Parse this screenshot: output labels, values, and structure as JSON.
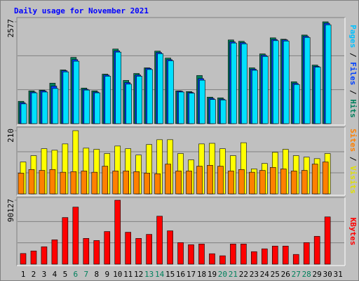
{
  "chart_data": {
    "type": "bar",
    "title": "Daily usage for November 2021",
    "categories": [
      "1",
      "2",
      "3",
      "4",
      "5",
      "6",
      "7",
      "8",
      "9",
      "10",
      "11",
      "12",
      "13",
      "14",
      "15",
      "16",
      "17",
      "18",
      "19",
      "20",
      "21",
      "22",
      "23",
      "24",
      "25",
      "26",
      "27",
      "28",
      "29",
      "30",
      "31"
    ],
    "category_colors": [
      "#000000",
      "#000000",
      "#000000",
      "#000000",
      "#000000",
      "#00805c",
      "#00805c",
      "#000000",
      "#000000",
      "#000000",
      "#000000",
      "#000000",
      "#00805c",
      "#00805c",
      "#000000",
      "#000000",
      "#000000",
      "#000000",
      "#000000",
      "#00805c",
      "#00805c",
      "#000000",
      "#000000",
      "#000000",
      "#000000",
      "#000000",
      "#00805c",
      "#00805c",
      "#000000",
      "#000000",
      "#000000"
    ],
    "panels": [
      {
        "ylim": [
          0,
          2577
        ],
        "yticks": [
          2577
        ],
        "series": [
          {
            "name": "Hits",
            "color": "#00805c",
            "values": [
              565,
              830,
              847,
              1024,
              1359,
              1677,
              900,
              830,
              1253,
              1888,
              1094,
              1270,
              1412,
              1835,
              1659,
              830,
              812,
              1218,
              671,
              653,
              2118,
              2083,
              1412,
              1765,
              2171,
              2136,
              1059,
              2242,
              1482,
              2577,
              0
            ]
          },
          {
            "name": "Files",
            "color": "#0040ff",
            "values": [
              530,
              800,
              830,
              950,
              1340,
              1620,
              870,
              800,
              1230,
              1840,
              1040,
              1230,
              1400,
              1800,
              1620,
              820,
              790,
              1140,
              640,
              620,
              2070,
              2050,
              1380,
              1730,
              2130,
              2120,
              1020,
              2210,
              1450,
              2540,
              0
            ]
          },
          {
            "name": "Pages",
            "color": "#00e0ff",
            "values": [
              500,
              780,
              800,
              890,
              1310,
              1580,
              850,
              780,
              1200,
              1810,
              1000,
              1200,
              1370,
              1770,
              1590,
              800,
              770,
              1100,
              610,
              600,
              2040,
              2020,
              1350,
              1700,
              2100,
              2090,
              990,
              2180,
              1430,
              2500,
              0
            ]
          }
        ]
      },
      {
        "ylim": [
          0,
          210
        ],
        "yticks": [
          210
        ],
        "series": [
          {
            "name": "Visits",
            "color": "#ffff00",
            "values": [
              106,
              127,
              150,
              145,
              166,
              210,
              152,
              148,
              134,
              159,
              150,
              129,
              164,
              180,
              180,
              134,
              113,
              166,
              168,
              150,
              127,
              170,
              83,
              101,
              138,
              148,
              127,
              122,
              117,
              134,
              0
            ]
          },
          {
            "name": "Sites",
            "color": "#ff8000",
            "values": [
              69,
              81,
              78,
              81,
              72,
              74,
              76,
              72,
              92,
              76,
              76,
              74,
              69,
              67,
              99,
              76,
              76,
              92,
              95,
              92,
              76,
              81,
              72,
              78,
              88,
              83,
              76,
              78,
              99,
              106,
              0
            ]
          }
        ]
      },
      {
        "ylim": [
          0,
          90127
        ],
        "yticks": [
          90127
        ],
        "series": [
          {
            "name": "KBytes",
            "color": "#ff0000",
            "values": [
              15000,
              18600,
              24500,
              34300,
              65700,
              80400,
              36300,
              33300,
              46000,
              90127,
              45000,
              36300,
              42000,
              67600,
              47000,
              30400,
              27400,
              28400,
              14700,
              11800,
              28400,
              28400,
              17600,
              21600,
              25500,
              25500,
              13700,
              30400,
              39200,
              66600,
              0
            ]
          }
        ]
      }
    ]
  }
}
